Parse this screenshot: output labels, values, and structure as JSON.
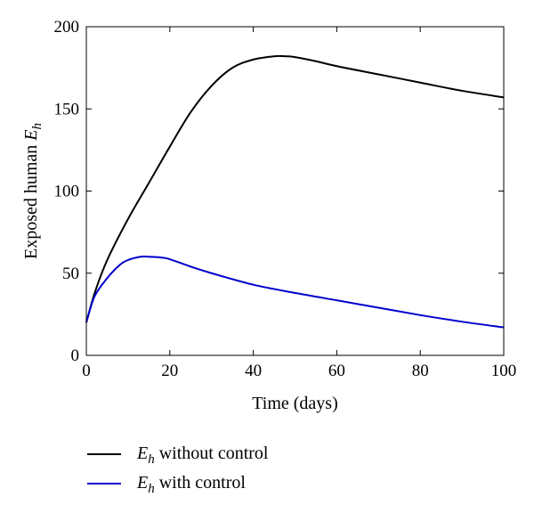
{
  "chart_data": {
    "type": "line",
    "xlabel": "Time (days)",
    "ylabel": "Exposed human",
    "ylabel_math": "E",
    "ylabel_sub": "h",
    "xlim": [
      0,
      100
    ],
    "ylim": [
      0,
      200
    ],
    "xticks": [
      0,
      20,
      40,
      60,
      80,
      100
    ],
    "yticks": [
      0,
      50,
      100,
      150,
      200
    ],
    "grid": false,
    "legend_position": "bottom",
    "series": [
      {
        "name": "without control",
        "name_math": "E",
        "name_sub": "h",
        "color": "#000000",
        "x": [
          0,
          2,
          5,
          10,
          15,
          20,
          25,
          30,
          35,
          40,
          45,
          48,
          50,
          55,
          60,
          70,
          80,
          90,
          100
        ],
        "y": [
          20,
          38,
          58,
          83,
          105,
          127,
          148,
          164,
          175,
          180,
          182,
          182,
          181.5,
          179,
          176,
          171,
          166,
          161,
          157
        ]
      },
      {
        "name": "with control",
        "name_math": "E",
        "name_sub": "h",
        "color": "#0000cc",
        "x": [
          0,
          2,
          5,
          8,
          10,
          13,
          15,
          18,
          20,
          25,
          30,
          40,
          50,
          60,
          70,
          80,
          90,
          100
        ],
        "y": [
          20,
          36,
          47,
          55,
          58,
          60,
          60,
          59.5,
          58.5,
          54,
          50,
          43,
          38,
          33.5,
          29,
          24.5,
          20.5,
          17
        ]
      }
    ]
  }
}
